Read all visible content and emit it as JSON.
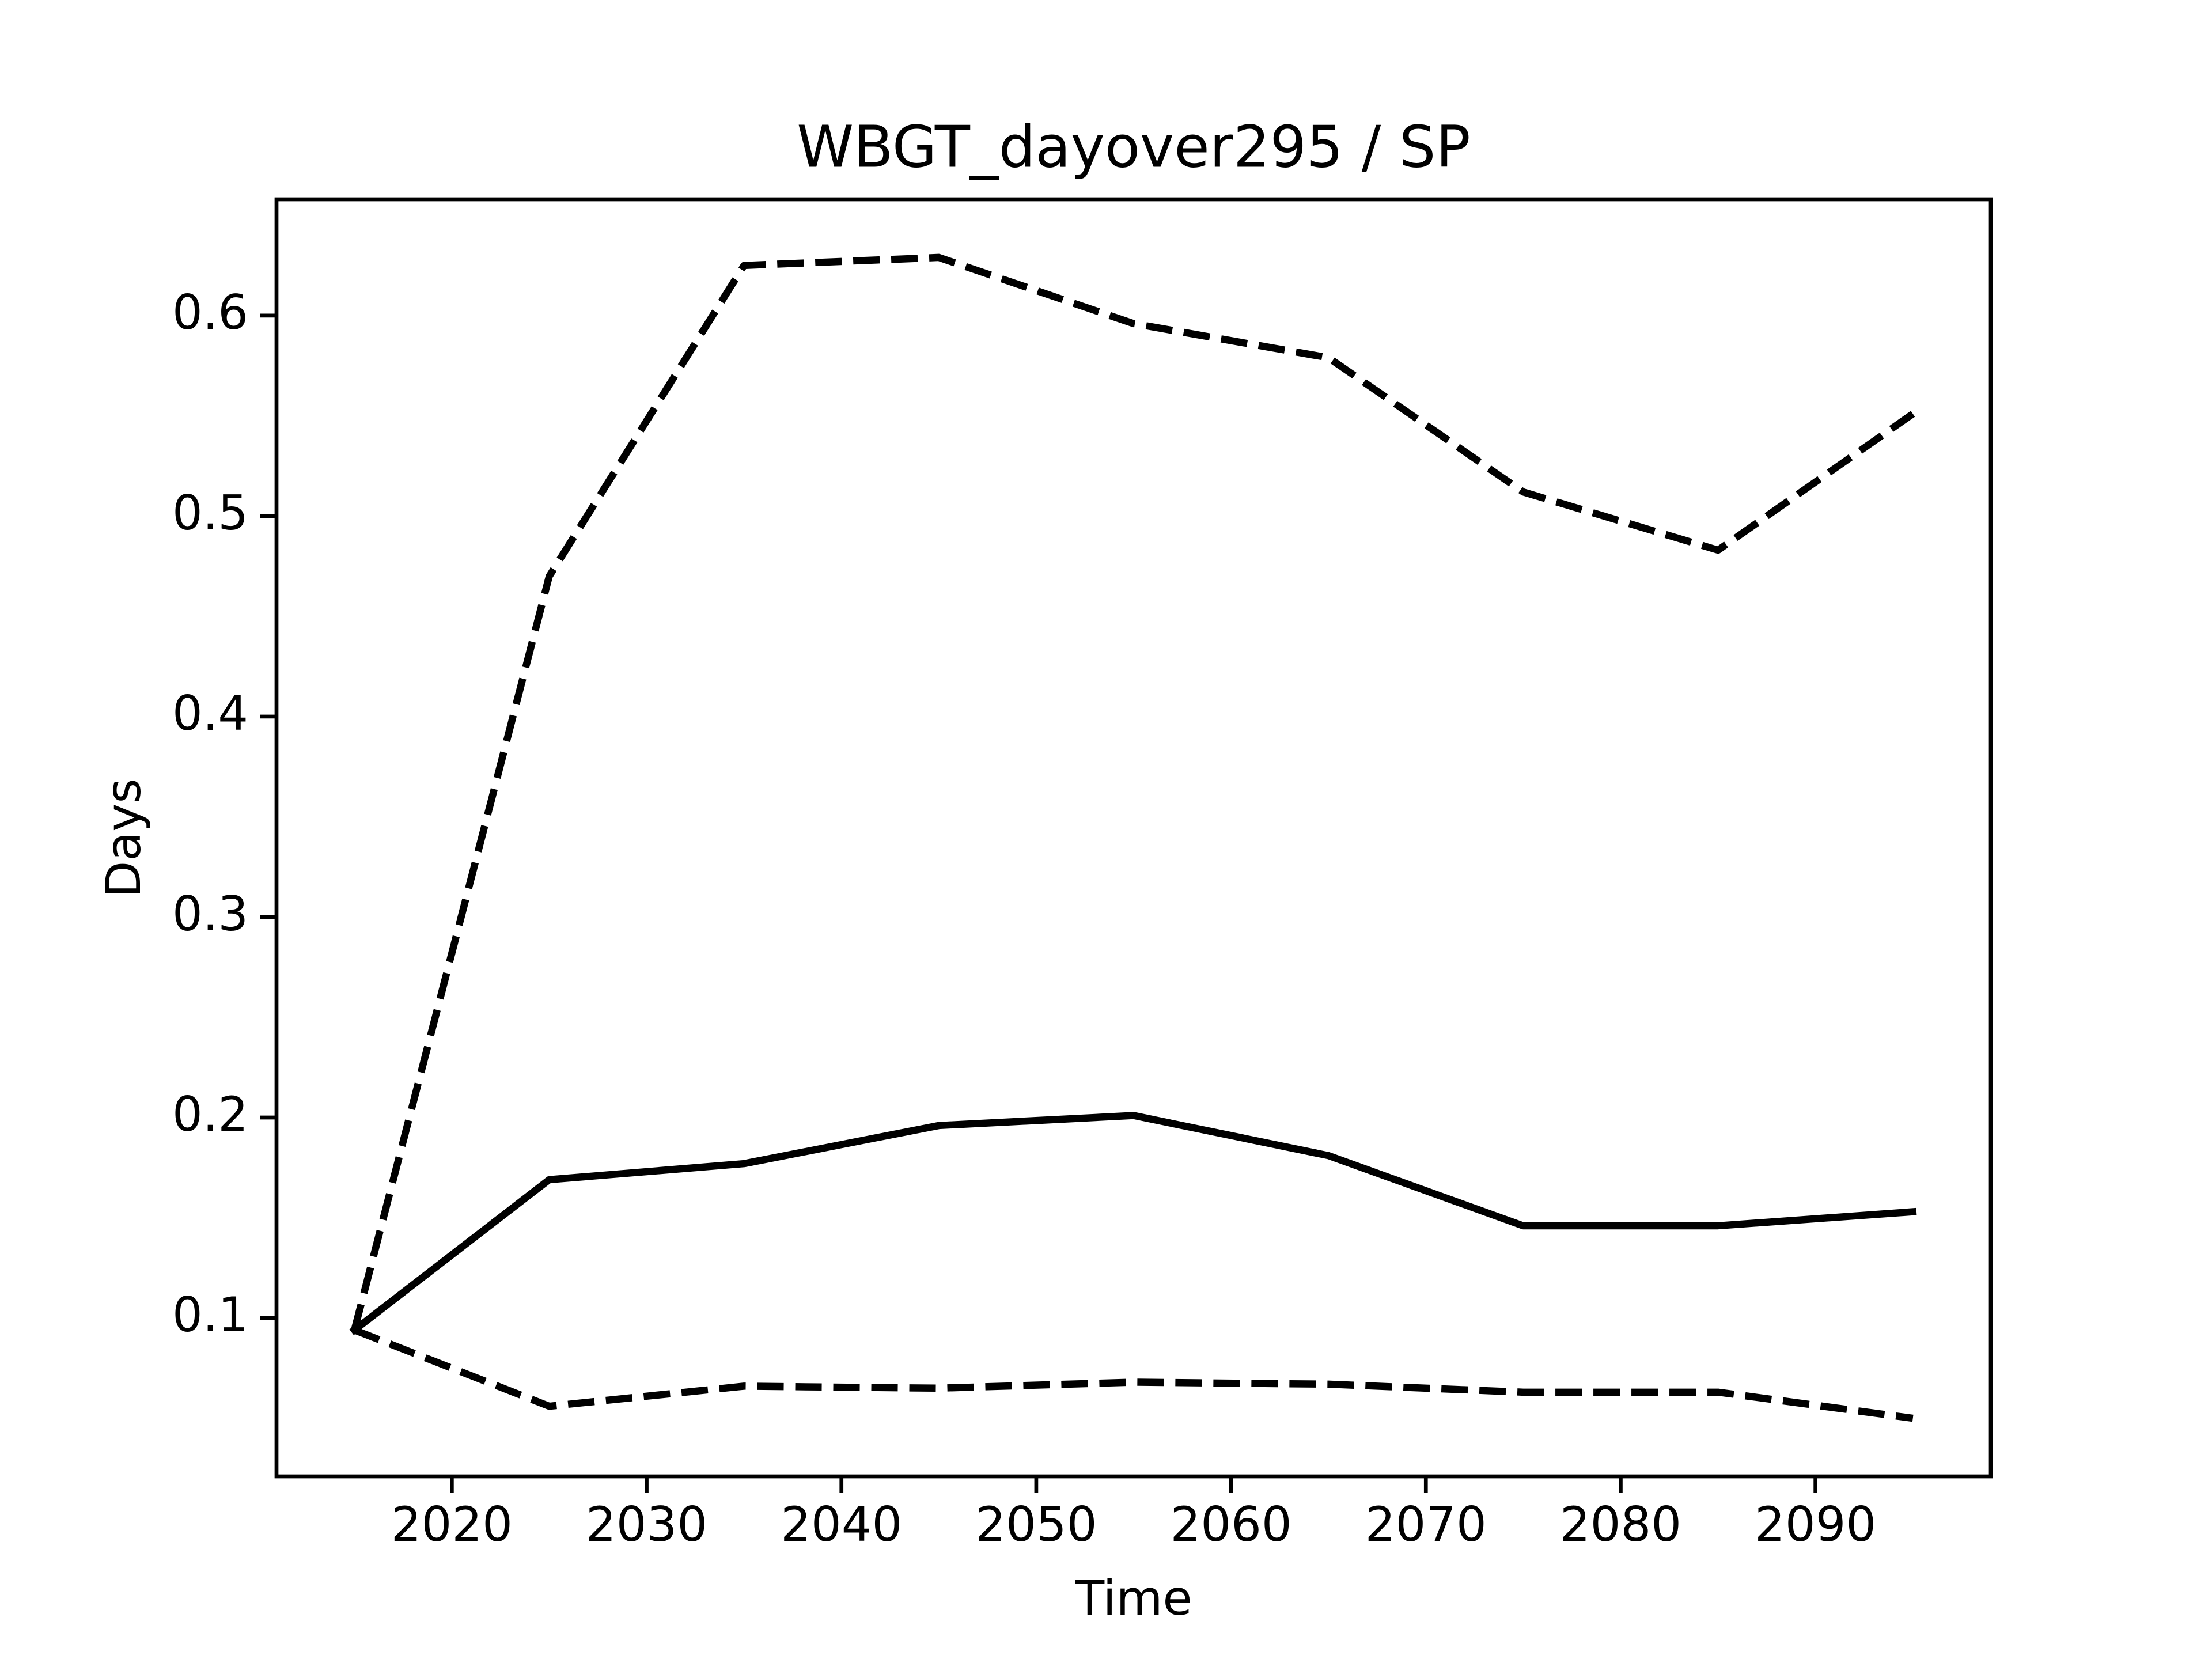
{
  "chart_data": {
    "type": "line",
    "title": "WBGT_dayover295 / SP",
    "xlabel": "Time",
    "ylabel": "Days",
    "x": [
      2015,
      2025,
      2035,
      2045,
      2055,
      2065,
      2075,
      2085,
      2095
    ],
    "series": [
      {
        "color": "#000000",
        "linestyle": "solid",
        "values": [
          0.094,
          0.169,
          0.177,
          0.196,
          0.201,
          0.181,
          0.146,
          0.146,
          0.153
        ]
      },
      {
        "color": "#000000",
        "linestyle": "dashed",
        "values": [
          0.094,
          0.47,
          0.625,
          0.629,
          0.596,
          0.579,
          0.512,
          0.483,
          0.551
        ]
      },
      {
        "color": "#000000",
        "linestyle": "dashed",
        "values": [
          0.094,
          0.056,
          0.066,
          0.065,
          0.068,
          0.067,
          0.063,
          0.063,
          0.05
        ]
      }
    ],
    "xlim": [
      2011,
      2099
    ],
    "ylim": [
      0.021,
      0.658
    ],
    "xticks": [
      2020,
      2030,
      2040,
      2050,
      2060,
      2070,
      2080,
      2090
    ],
    "yticks": [
      0.1,
      0.2,
      0.3,
      0.4,
      0.5,
      0.6
    ],
    "grid": false
  }
}
